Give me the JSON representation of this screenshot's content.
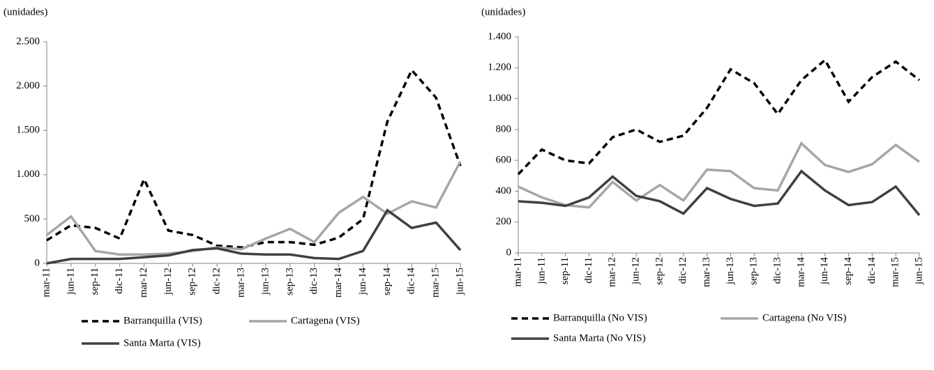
{
  "chart_data": [
    {
      "type": "line",
      "y_label": "(unidades)",
      "categories": [
        "mar-11",
        "jun-11",
        "sep-11",
        "dic-11",
        "mar-12",
        "jun-12",
        "sep-12",
        "dic-12",
        "mar-13",
        "jun-13",
        "sep-13",
        "dic-13",
        "mar-14",
        "jun-14",
        "sep-14",
        "dic-14",
        "mar-15",
        "jun-15"
      ],
      "ylim": [
        0,
        2500
      ],
      "yticks": [
        0,
        500,
        {
          "value": 1000,
          "label": "1.000"
        },
        {
          "value": 1500,
          "label": "1.500"
        },
        {
          "value": 2000,
          "label": "2.000"
        },
        {
          "value": 2500,
          "label": "2.500"
        }
      ],
      "series": [
        {
          "name": "Barranquilla (VIS)",
          "color": "#000000",
          "line_style": "dashed",
          "values": [
            260,
            430,
            400,
            280,
            950,
            370,
            320,
            200,
            180,
            240,
            240,
            210,
            290,
            500,
            1600,
            2180,
            1870,
            1100
          ]
        },
        {
          "name": "Cartagena (VIS)",
          "color": "#a6a6a6",
          "line_style": "solid",
          "values": [
            320,
            530,
            140,
            100,
            100,
            110,
            140,
            180,
            160,
            280,
            390,
            240,
            570,
            750,
            560,
            700,
            630,
            1150
          ]
        },
        {
          "name": "Santa Marta (VIS)",
          "color": "#404040",
          "line_style": "solid",
          "values": [
            0,
            50,
            50,
            50,
            70,
            90,
            150,
            170,
            110,
            100,
            100,
            60,
            50,
            140,
            600,
            400,
            460,
            150
          ]
        }
      ]
    },
    {
      "type": "line",
      "y_label": "(unidades)",
      "categories": [
        "mar-11",
        "jun-11",
        "sep-11",
        "dic-11",
        "mar-12",
        "jun-12",
        "sep-12",
        "dic-12",
        "mar-13",
        "jun-13",
        "sep-13",
        "dic-13",
        "mar-14",
        "jun-14",
        "sep-14",
        "dic-14",
        "mar-15",
        "jun-15"
      ],
      "ylim": [
        0,
        1400
      ],
      "yticks": [
        0,
        200,
        400,
        600,
        800,
        {
          "value": 1000,
          "label": "1.000"
        },
        {
          "value": 1200,
          "label": "1.200"
        },
        {
          "value": 1400,
          "label": "1.400"
        }
      ],
      "series": [
        {
          "name": "Barranquilla (No VIS)",
          "color": "#000000",
          "line_style": "dashed",
          "values": [
            510,
            670,
            600,
            580,
            750,
            800,
            720,
            760,
            940,
            1190,
            1100,
            900,
            1120,
            1250,
            980,
            1140,
            1240,
            1120
          ]
        },
        {
          "name": "Cartagena (No VIS)",
          "color": "#a6a6a6",
          "line_style": "solid",
          "values": [
            430,
            360,
            310,
            295,
            460,
            340,
            440,
            340,
            540,
            530,
            420,
            405,
            710,
            570,
            525,
            575,
            700,
            590
          ]
        },
        {
          "name": "Santa Marta (No VIS)",
          "color": "#404040",
          "line_style": "solid",
          "values": [
            335,
            325,
            305,
            360,
            495,
            370,
            335,
            255,
            420,
            350,
            305,
            320,
            530,
            405,
            310,
            330,
            430,
            245
          ]
        }
      ]
    }
  ]
}
